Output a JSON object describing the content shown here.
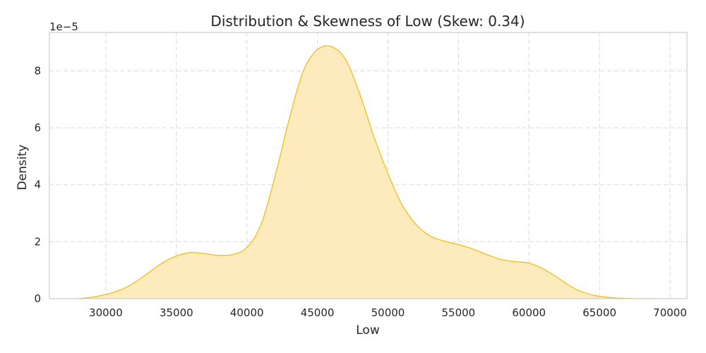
{
  "chart_data": {
    "type": "area",
    "title": "Distribution & Skewness of Low (Skew: 0.34)",
    "xlabel": "Low",
    "ylabel": "Density",
    "y_offset_label": "1e−5",
    "xlim": [
      26000,
      71200
    ],
    "ylim": [
      0,
      9.35
    ],
    "x_ticks": [
      30000,
      35000,
      40000,
      45000,
      50000,
      55000,
      60000,
      65000,
      70000
    ],
    "y_ticks": [
      0,
      2,
      4,
      6,
      8
    ],
    "grid": true,
    "colors": {
      "fill": "#fdebbd",
      "line": "#f2bc1a"
    },
    "series": [
      {
        "x": [
          28000,
          29000,
          30000,
          31000,
          32000,
          33000,
          34000,
          35000,
          36000,
          37000,
          38000,
          39000,
          40000,
          41000,
          42000,
          43000,
          44000,
          45000,
          46000,
          47000,
          48000,
          49000,
          50000,
          51000,
          52000,
          53000,
          54000,
          55000,
          56000,
          57000,
          58000,
          59000,
          60000,
          61000,
          62000,
          63000,
          64000,
          65000,
          66000,
          67000,
          68000,
          69000
        ],
        "y": [
          0.0,
          0.05,
          0.15,
          0.3,
          0.55,
          0.9,
          1.25,
          1.5,
          1.62,
          1.58,
          1.52,
          1.55,
          1.8,
          2.6,
          4.3,
          6.3,
          8.0,
          8.75,
          8.85,
          8.4,
          7.2,
          5.7,
          4.4,
          3.3,
          2.6,
          2.2,
          2.02,
          1.9,
          1.75,
          1.55,
          1.38,
          1.3,
          1.25,
          1.05,
          0.75,
          0.42,
          0.2,
          0.08,
          0.03,
          0.01,
          0.0,
          0.0
        ]
      }
    ]
  }
}
